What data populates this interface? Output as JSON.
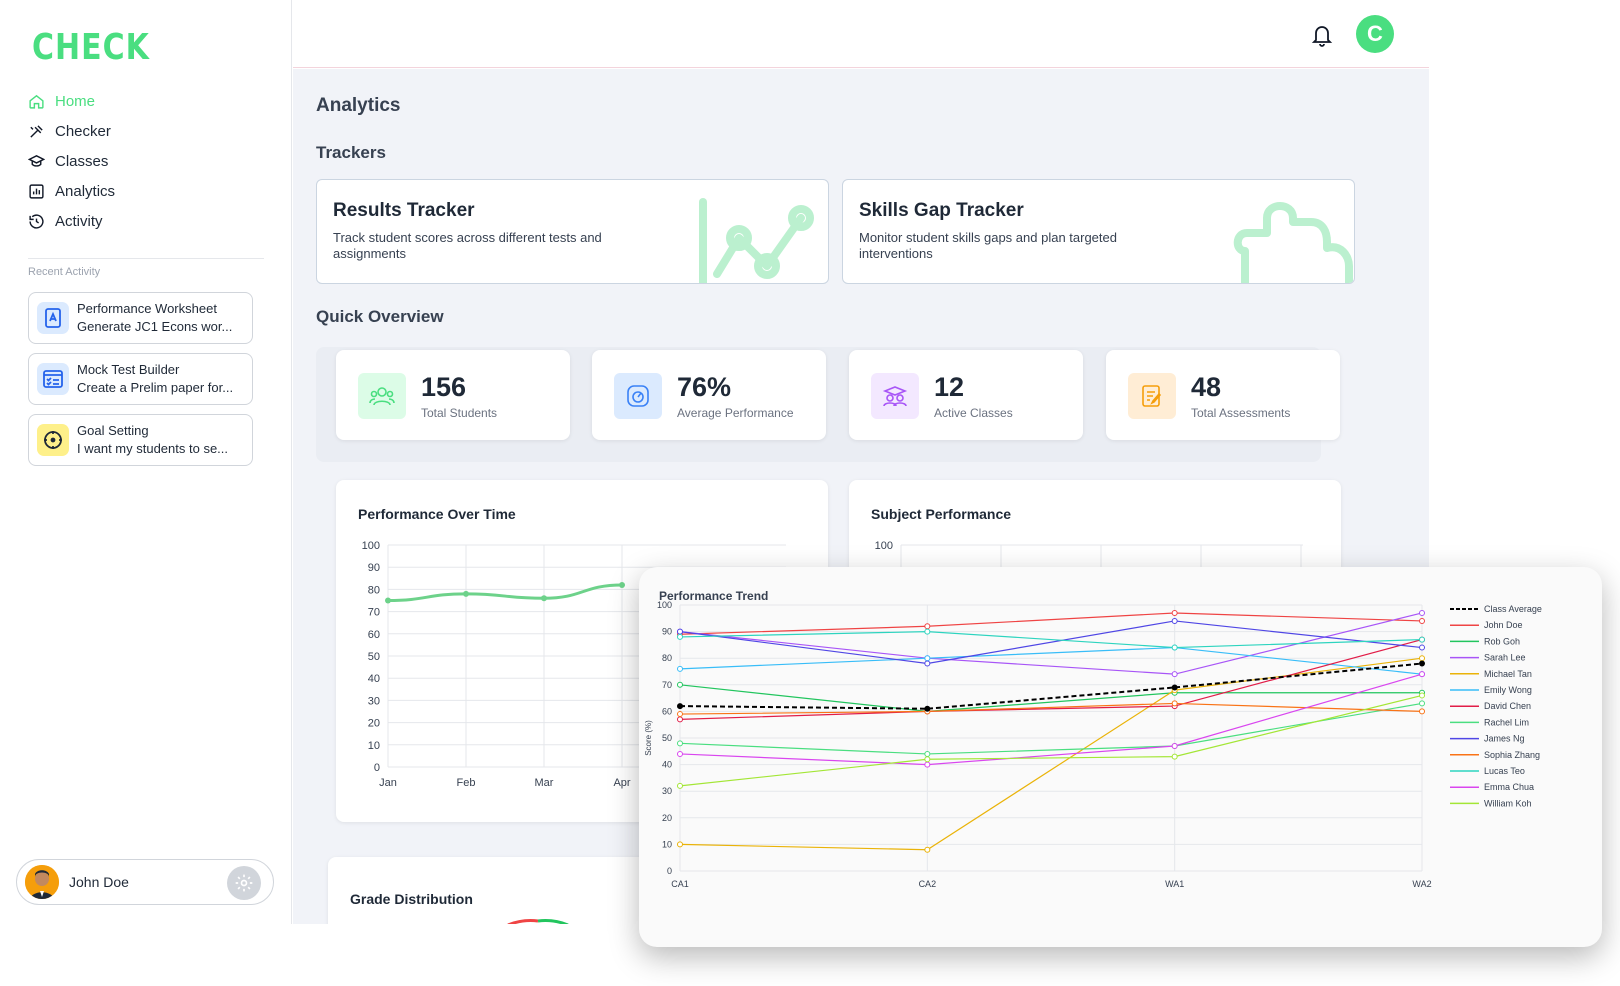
{
  "brand": {
    "logo": "CHECK",
    "accent": "#4ade80"
  },
  "sidebar": {
    "nav": [
      {
        "label": "Home",
        "icon": "home-icon",
        "active": true
      },
      {
        "label": "Checker",
        "icon": "checker-icon",
        "active": false
      },
      {
        "label": "Classes",
        "icon": "classes-icon",
        "active": false
      },
      {
        "label": "Analytics",
        "icon": "analytics-icon",
        "active": false
      },
      {
        "label": "Activity",
        "icon": "activity-icon",
        "active": false
      }
    ],
    "recent_title": "Recent Activity",
    "recent": [
      {
        "title": "Performance Worksheet",
        "subtitle": "Generate JC1 Econs wor...",
        "icon": "worksheet-icon",
        "color": "#dbeafe"
      },
      {
        "title": "Mock Test Builder",
        "subtitle": "Create a Prelim paper for...",
        "icon": "test-builder-icon",
        "color": "#dbeafe"
      },
      {
        "title": "Goal Setting",
        "subtitle": "I want my students to se...",
        "icon": "goal-icon",
        "color": "#fef08a"
      }
    ],
    "user": {
      "name": "John Doe"
    }
  },
  "header": {
    "avatar_letter": "C"
  },
  "main": {
    "title": "Analytics",
    "trackers_title": "Trackers",
    "trackers": [
      {
        "title": "Results Tracker",
        "desc": "Track student scores across different tests and assignments"
      },
      {
        "title": "Skills Gap Tracker",
        "desc": "Monitor student skills gaps and plan targeted interventions"
      }
    ],
    "quick_title": "Quick Overview",
    "stats": [
      {
        "value": "156",
        "label": "Total Students",
        "icon": "students-icon",
        "color": "#dcfce7"
      },
      {
        "value": "76%",
        "label": "Average Performance",
        "icon": "gauge-icon",
        "color": "#dbeafe"
      },
      {
        "value": "12",
        "label": "Active Classes",
        "icon": "classes-icon",
        "color": "#f3e8ff"
      },
      {
        "value": "48",
        "label": "Total Assessments",
        "icon": "assessment-icon",
        "color": "#ffedd5"
      }
    ],
    "perf_time_title": "Performance Over Time",
    "subject_title": "Subject Performance",
    "grade_title": "Grade Distribution"
  },
  "chart_data": [
    {
      "type": "line",
      "title": "Performance Over Time",
      "categories": [
        "Jan",
        "Feb",
        "Mar",
        "Apr"
      ],
      "series": [
        {
          "values": [
            75,
            78,
            76,
            82
          ]
        }
      ],
      "ylim": [
        0,
        100
      ],
      "yticks": [
        0,
        10,
        20,
        30,
        40,
        50,
        60,
        70,
        80,
        90,
        100
      ]
    },
    {
      "type": "bar",
      "title": "Subject Performance",
      "ylim": [
        0,
        100
      ],
      "yticks": [
        100
      ]
    },
    {
      "type": "line",
      "title": "Performance Trend",
      "ylabel": "Score (%)",
      "categories": [
        "CA1",
        "CA2",
        "WA1",
        "WA2"
      ],
      "ylim": [
        0,
        100
      ],
      "yticks": [
        0,
        10,
        20,
        30,
        40,
        50,
        60,
        70,
        80,
        90,
        100
      ],
      "legend": "right",
      "series": [
        {
          "name": "Class Average",
          "color": "#000000",
          "dashed": true,
          "values": [
            62,
            61,
            69,
            78
          ]
        },
        {
          "name": "John Doe",
          "color": "#ef4444",
          "values": [
            89,
            92,
            97,
            94
          ]
        },
        {
          "name": "Rob Goh",
          "color": "#22c55e",
          "values": [
            70,
            60,
            67,
            67
          ]
        },
        {
          "name": "Sarah Lee",
          "color": "#a855f7",
          "values": [
            90,
            80,
            74,
            97
          ]
        },
        {
          "name": "Michael Tan",
          "color": "#eab308",
          "values": [
            10,
            8,
            68,
            80
          ]
        },
        {
          "name": "Emily Wong",
          "color": "#38bdf8",
          "values": [
            76,
            80,
            84,
            74
          ]
        },
        {
          "name": "David Chen",
          "color": "#e11d48",
          "values": [
            57,
            60,
            62,
            87
          ]
        },
        {
          "name": "Rachel Lim",
          "color": "#4ade80",
          "values": [
            48,
            44,
            47,
            63
          ]
        },
        {
          "name": "James Ng",
          "color": "#4f46e5",
          "values": [
            90,
            78,
            94,
            84
          ]
        },
        {
          "name": "Sophia Zhang",
          "color": "#f97316",
          "values": [
            59,
            60,
            63,
            60
          ]
        },
        {
          "name": "Lucas Teo",
          "color": "#2dd4bf",
          "values": [
            88,
            90,
            84,
            87
          ]
        },
        {
          "name": "Emma Chua",
          "color": "#d946ef",
          "values": [
            44,
            40,
            47,
            74
          ]
        },
        {
          "name": "William Koh",
          "color": "#a3e635",
          "values": [
            32,
            42,
            43,
            66
          ]
        }
      ]
    }
  ]
}
